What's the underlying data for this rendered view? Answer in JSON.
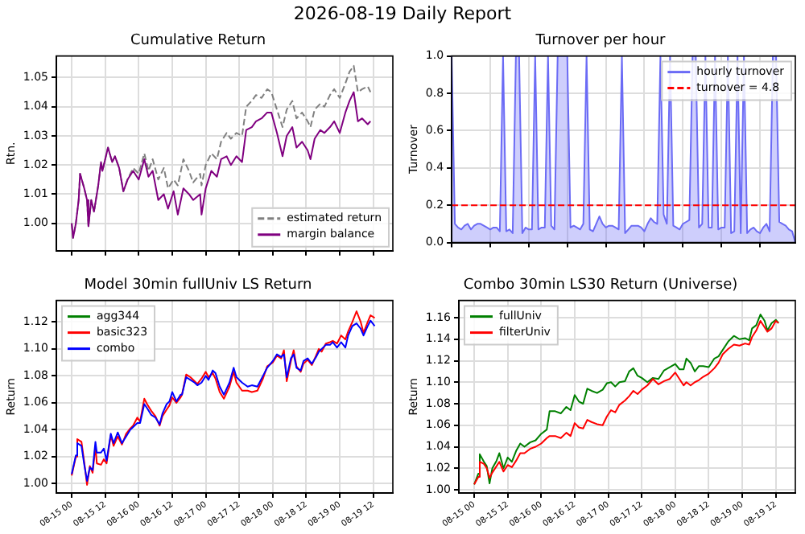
{
  "chart_data": [
    {
      "type": "line",
      "title": "Cumulative Return",
      "ylabel": "Rtn.",
      "annotations": [
        "2026-08-19 Daily Report"
      ],
      "x": [
        "2026-08-15T00:00",
        "2026-08-15T00:30",
        "2026-08-15T01:30",
        "2026-08-15T02:30",
        "2026-08-15T03:00",
        "2026-08-15T04:30",
        "2026-08-15T05:30",
        "2026-08-15T06:00",
        "2026-08-15T07:00",
        "2026-08-15T08:00",
        "2026-08-15T09:30",
        "2026-08-15T10:30",
        "2026-08-15T11:00",
        "2026-08-15T13:00",
        "2026-08-15T14:30",
        "2026-08-15T15:30",
        "2026-08-15T17:00",
        "2026-08-15T18:30",
        "2026-08-15T20:00",
        "2026-08-15T22:00",
        "2026-08-16T00:00",
        "2026-08-16T02:00",
        "2026-08-16T03:30",
        "2026-08-16T05:00",
        "2026-08-16T07:00",
        "2026-08-16T09:00",
        "2026-08-16T10:30",
        "2026-08-16T12:30",
        "2026-08-16T14:00",
        "2026-08-16T16:00",
        "2026-08-16T18:00",
        "2026-08-16T19:30",
        "2026-08-16T22:00",
        "2026-08-16T22:30",
        "2026-08-17T00:00",
        "2026-08-17T02:00",
        "2026-08-17T04:00",
        "2026-08-17T05:30",
        "2026-08-17T07:30",
        "2026-08-17T09:00",
        "2026-08-17T11:00",
        "2026-08-17T13:00",
        "2026-08-17T14:30",
        "2026-08-17T16:30",
        "2026-08-17T18:00",
        "2026-08-17T20:00",
        "2026-08-17T22:00",
        "2026-08-17T23:30",
        "2026-08-18T01:30",
        "2026-08-18T03:30",
        "2026-08-18T05:00",
        "2026-08-18T07:00",
        "2026-08-18T08:30",
        "2026-08-18T10:30",
        "2026-08-18T12:30",
        "2026-08-18T13:30",
        "2026-08-18T15:00",
        "2026-08-18T17:00",
        "2026-08-18T18:30",
        "2026-08-18T20:30",
        "2026-08-18T22:00",
        "2026-08-19T00:00",
        "2026-08-19T02:00",
        "2026-08-19T03:30",
        "2026-08-19T05:00",
        "2026-08-19T06:30",
        "2026-08-19T08:00",
        "2026-08-19T10:00",
        "2026-08-19T11:00"
      ],
      "series": [
        {
          "name": "estimated return",
          "color": "#808080",
          "line_style": "dashed",
          "values": [
            1.0,
            0.995,
            1.0,
            1.008,
            1.017,
            1.012,
            1.008,
            0.999,
            1.008,
            1.004,
            1.013,
            1.021,
            1.018,
            1.026,
            1.021,
            1.023,
            1.019,
            1.011,
            1.015,
            1.019,
            1.017,
            1.024,
            1.018,
            1.022,
            1.015,
            1.019,
            1.012,
            1.015,
            1.013,
            1.022,
            1.018,
            1.014,
            1.017,
            1.013,
            1.02,
            1.024,
            1.022,
            1.028,
            1.031,
            1.029,
            1.031,
            1.03,
            1.04,
            1.042,
            1.044,
            1.043,
            1.046,
            1.045,
            1.039,
            1.033,
            1.039,
            1.042,
            1.036,
            1.038,
            1.035,
            1.033,
            1.039,
            1.041,
            1.04,
            1.044,
            1.046,
            1.043,
            1.048,
            1.052,
            1.054,
            1.045,
            1.046,
            1.047,
            1.045
          ]
        },
        {
          "name": "margin balance",
          "color": "#800080",
          "values": [
            1.0,
            0.995,
            1.0,
            1.008,
            1.017,
            1.012,
            1.008,
            0.999,
            1.008,
            1.004,
            1.013,
            1.021,
            1.018,
            1.026,
            1.021,
            1.023,
            1.019,
            1.011,
            1.015,
            1.018,
            1.015,
            1.022,
            1.016,
            1.018,
            1.008,
            1.01,
            1.005,
            1.011,
            1.003,
            1.012,
            1.01,
            1.008,
            1.01,
            1.003,
            1.012,
            1.018,
            1.016,
            1.022,
            1.023,
            1.02,
            1.023,
            1.021,
            1.032,
            1.033,
            1.035,
            1.036,
            1.038,
            1.038,
            1.031,
            1.023,
            1.03,
            1.033,
            1.026,
            1.028,
            1.025,
            1.022,
            1.029,
            1.032,
            1.031,
            1.033,
            1.035,
            1.031,
            1.038,
            1.042,
            1.045,
            1.035,
            1.036,
            1.034,
            1.035
          ]
        }
      ],
      "xlim": [
        "2026-08-14T18:30",
        "2026-08-19T19:00"
      ],
      "xticks": [
        {
          "value": "2026-08-15T00:00",
          "label": null
        },
        {
          "value": "2026-08-15T12:00",
          "label": null
        },
        {
          "value": "2026-08-16T00:00",
          "label": null
        },
        {
          "value": "2026-08-16T12:00",
          "label": null
        },
        {
          "value": "2026-08-17T00:00",
          "label": null
        },
        {
          "value": "2026-08-17T12:00",
          "label": null
        },
        {
          "value": "2026-08-18T00:00",
          "label": null
        },
        {
          "value": "2026-08-18T12:00",
          "label": null
        },
        {
          "value": "2026-08-19T00:00",
          "label": null
        },
        {
          "value": "2026-08-19T12:00",
          "label": null
        }
      ],
      "ylim": [
        0.9906,
        1.0574
      ],
      "yticks": [
        {
          "value": 1,
          "label": "1.00"
        },
        {
          "value": 1.01,
          "label": "1.01"
        },
        {
          "value": 1.02,
          "label": "1.02"
        },
        {
          "value": 1.03,
          "label": "1.03"
        },
        {
          "value": 1.04,
          "label": "1.04"
        },
        {
          "value": 1.05,
          "label": "1.05"
        }
      ],
      "tick_labels": "y",
      "grid": true,
      "legend": "bottom right"
    },
    {
      "type": "area",
      "title": "Turnover per hour",
      "ylabel": "Turnover",
      "categories": [
        null,
        null,
        null,
        null,
        null,
        null,
        null,
        null,
        null,
        null,
        null,
        null,
        null,
        null,
        null,
        null,
        null,
        null,
        null,
        null,
        null,
        null,
        null,
        null,
        null,
        null,
        null,
        null,
        null,
        null,
        null,
        null,
        null,
        null,
        null,
        null,
        null,
        null,
        null,
        null,
        null,
        null,
        null,
        null,
        null,
        null,
        null,
        null,
        null,
        null,
        null,
        null,
        null,
        null,
        null,
        null,
        null,
        null,
        null,
        null,
        null,
        null,
        null,
        null,
        null,
        null,
        null,
        null,
        null,
        null,
        null,
        null,
        null,
        null,
        null,
        null,
        null,
        null,
        null,
        null,
        null,
        null,
        null,
        null,
        null,
        null,
        null,
        null,
        null,
        null,
        null,
        null,
        null,
        null,
        null,
        null,
        null,
        null,
        null,
        null,
        null,
        null,
        null,
        null,
        null,
        null,
        null,
        null
      ],
      "series": [
        {
          "name": "hourly turnover",
          "color": "#6b6bf5",
          "values": [
            1,
            0.1,
            0.08,
            0.07,
            0.09,
            0.1,
            0.07,
            0.09,
            0.1,
            0.1,
            0.09,
            0.08,
            0.07,
            0.08,
            0.08,
            0.06,
            1,
            0.06,
            0.07,
            0.05,
            1,
            1,
            0.05,
            0.08,
            0.07,
            0.07,
            1,
            0.07,
            0.08,
            0.08,
            1,
            0.09,
            0.07,
            1,
            1,
            1,
            1,
            0.08,
            0.09,
            0.08,
            0.07,
            0.1,
            1,
            0.07,
            0.06,
            0.1,
            0.14,
            0.1,
            0.08,
            0.09,
            0.09,
            0.08,
            0.07,
            1,
            0.05,
            0.07,
            0.09,
            0.09,
            0.09,
            0.08,
            0.06,
            0.1,
            0.13,
            0.11,
            0.1,
            1,
            0.15,
            0.1,
            1,
            0.09,
            0.08,
            0.07,
            0.1,
            0.11,
            0.12,
            1,
            1,
            0.08,
            0.1,
            1,
            0.08,
            0.08,
            1,
            0.07,
            0.08,
            0.08,
            1,
            0.05,
            0.06,
            1,
            0.05,
            1,
            0.05,
            0.07,
            0.08,
            0.06,
            0.05,
            0.08,
            0.1,
            0.06,
            1,
            1,
            0.11,
            0.1,
            0.09,
            0.07,
            0.06,
            0
          ]
        },
        {
          "type": "line",
          "name": "turnover = 4.8",
          "color": "#ff0000",
          "line_style": "dashed",
          "values": [
            0.2,
            0.2,
            0.2,
            0.2,
            0.2,
            0.2,
            0.2,
            0.2,
            0.2,
            0.2,
            0.2,
            0.2,
            0.2,
            0.2,
            0.2,
            0.2,
            0.2,
            0.2,
            0.2,
            0.2,
            0.2,
            0.2,
            0.2,
            0.2,
            0.2,
            0.2,
            0.2,
            0.2,
            0.2,
            0.2,
            0.2,
            0.2,
            0.2,
            0.2,
            0.2,
            0.2,
            0.2,
            0.2,
            0.2,
            0.2,
            0.2,
            0.2,
            0.2,
            0.2,
            0.2,
            0.2,
            0.2,
            0.2,
            0.2,
            0.2,
            0.2,
            0.2,
            0.2,
            0.2,
            0.2,
            0.2,
            0.2,
            0.2,
            0.2,
            0.2,
            0.2,
            0.2,
            0.2,
            0.2,
            0.2,
            0.2,
            0.2,
            0.2,
            0.2,
            0.2,
            0.2,
            0.2,
            0.2,
            0.2,
            0.2,
            0.2,
            0.2,
            0.2,
            0.2,
            0.2,
            0.2,
            0.2,
            0.2,
            0.2,
            0.2,
            0.2,
            0.2,
            0.2,
            0.2,
            0.2,
            0.2,
            0.2,
            0.2,
            0.2,
            0.2,
            0.2,
            0.2,
            0.2,
            0.2,
            0.2,
            0.2,
            0.2,
            0.2,
            0.2,
            0.2,
            0.2,
            0.2,
            0.2
          ]
        }
      ],
      "ylim": [
        0,
        1
      ],
      "yticks": [
        {
          "value": 0,
          "label": "0.0"
        },
        {
          "value": 0.2,
          "label": "0.2"
        },
        {
          "value": 0.4,
          "label": "0.4"
        },
        {
          "value": 0.6,
          "label": "0.6"
        },
        {
          "value": 0.8,
          "label": "0.8"
        },
        {
          "value": 1,
          "label": "1.0"
        }
      ],
      "tick_labels": "y",
      "grid": true,
      "legend": "top right"
    },
    {
      "type": "line",
      "title": "Model 30min fullUniv LS Return",
      "ylabel": "Return",
      "x": [
        "2026-08-15T00:00",
        "2026-08-15T01:30",
        "2026-08-15T02:00",
        "2026-08-15T03:30",
        "2026-08-15T04:30",
        "2026-08-15T05:30",
        "2026-08-15T06:30",
        "2026-08-15T07:30",
        "2026-08-15T08:30",
        "2026-08-15T09:00",
        "2026-08-15T10:30",
        "2026-08-15T11:30",
        "2026-08-15T12:30",
        "2026-08-15T14:00",
        "2026-08-15T15:00",
        "2026-08-15T16:30",
        "2026-08-15T18:00",
        "2026-08-15T19:30",
        "2026-08-15T21:00",
        "2026-08-15T22:00",
        "2026-08-15T23:30",
        "2026-08-16T00:30",
        "2026-08-16T02:00",
        "2026-08-16T03:00",
        "2026-08-16T04:30",
        "2026-08-16T06:00",
        "2026-08-16T07:30",
        "2026-08-16T08:30",
        "2026-08-16T10:00",
        "2026-08-16T11:00",
        "2026-08-16T12:00",
        "2026-08-16T13:30",
        "2026-08-16T15:00",
        "2026-08-16T15:30",
        "2026-08-16T17:00",
        "2026-08-16T18:30",
        "2026-08-16T20:00",
        "2026-08-16T21:00",
        "2026-08-16T22:30",
        "2026-08-17T00:00",
        "2026-08-17T01:00",
        "2026-08-17T02:30",
        "2026-08-17T03:30",
        "2026-08-17T05:00",
        "2026-08-17T06:30",
        "2026-08-17T08:30",
        "2026-08-17T10:00",
        "2026-08-17T11:00",
        "2026-08-17T13:00",
        "2026-08-17T15:00",
        "2026-08-17T16:30",
        "2026-08-17T18:30",
        "2026-08-17T20:30",
        "2026-08-17T22:00",
        "2026-08-18T00:00",
        "2026-08-18T01:30",
        "2026-08-18T03:00",
        "2026-08-18T04:00",
        "2026-08-18T05:00",
        "2026-08-18T06:30",
        "2026-08-18T07:30",
        "2026-08-18T08:30",
        "2026-08-18T10:00",
        "2026-08-18T11:00",
        "2026-08-18T12:30",
        "2026-08-18T14:00",
        "2026-08-18T15:30",
        "2026-08-18T16:30",
        "2026-08-18T17:30",
        "2026-08-18T19:00",
        "2026-08-18T20:30",
        "2026-08-18T21:30",
        "2026-08-18T23:00",
        "2026-08-19T00:30",
        "2026-08-19T02:00",
        "2026-08-19T03:00",
        "2026-08-19T04:30",
        "2026-08-19T06:00",
        "2026-08-19T07:30",
        "2026-08-19T08:30",
        "2026-08-19T10:00",
        "2026-08-19T11:00",
        "2026-08-19T12:30"
      ],
      "series": [
        {
          "name": "agg344",
          "color": "#008000",
          "values": [
            null,
            null,
            null,
            null,
            null,
            null,
            null,
            null,
            null,
            null,
            null,
            null,
            null,
            null,
            null,
            null,
            null,
            null,
            null,
            null,
            null,
            null,
            null,
            null,
            null,
            null,
            null,
            null,
            null,
            null,
            null,
            null,
            null,
            null,
            null,
            null,
            null,
            null,
            null,
            null,
            null,
            null,
            null,
            null,
            null,
            null,
            null,
            null,
            null,
            null,
            null,
            null,
            null,
            null,
            null,
            null,
            null,
            null,
            null,
            null,
            null,
            null,
            null,
            null,
            null,
            null,
            null,
            null,
            null,
            null,
            null,
            null,
            null,
            null,
            null,
            null,
            null,
            null,
            null,
            null,
            null,
            null,
            null
          ]
        },
        {
          "name": "basic323",
          "color": "#ff0000",
          "values": [
            1.006,
            1.02,
            1.033,
            1.031,
            1.016,
            0.999,
            1.013,
            1.008,
            1.028,
            1.015,
            1.014,
            1.018,
            1.015,
            1.036,
            1.028,
            1.035,
            1.029,
            1.037,
            1.041,
            1.043,
            1.049,
            1.046,
            1.063,
            1.059,
            1.054,
            1.05,
            1.043,
            1.05,
            1.055,
            1.058,
            1.064,
            1.06,
            1.064,
            1.066,
            1.081,
            1.079,
            1.076,
            1.074,
            1.078,
            1.083,
            1.079,
            1.082,
            1.078,
            1.068,
            1.063,
            1.072,
            1.083,
            1.075,
            1.069,
            1.069,
            1.068,
            1.069,
            1.078,
            1.087,
            1.09,
            1.095,
            1.093,
            1.099,
            1.076,
            1.091,
            1.099,
            1.087,
            1.083,
            1.089,
            1.092,
            1.088,
            1.095,
            1.1,
            1.098,
            1.104,
            1.105,
            1.106,
            1.104,
            1.11,
            1.107,
            1.113,
            1.12,
            1.128,
            1.12,
            1.112,
            1.12,
            1.125,
            1.123
          ]
        },
        {
          "name": "combo",
          "color": "#0000ff",
          "values": [
            1.007,
            1.021,
            1.03,
            1.028,
            1.014,
            1.002,
            1.012,
            1.01,
            1.031,
            1.023,
            1.023,
            1.026,
            1.017,
            1.037,
            1.03,
            1.038,
            1.03,
            1.035,
            1.04,
            1.042,
            1.045,
            1.045,
            1.059,
            1.056,
            1.051,
            1.049,
            1.044,
            1.052,
            1.059,
            1.061,
            1.068,
            1.061,
            1.066,
            1.066,
            1.079,
            1.077,
            1.075,
            1.073,
            1.075,
            1.08,
            1.077,
            1.084,
            1.082,
            1.072,
            1.066,
            1.075,
            1.086,
            1.079,
            1.075,
            1.072,
            1.073,
            1.072,
            1.08,
            1.086,
            1.091,
            1.096,
            1.094,
            1.096,
            1.079,
            1.093,
            1.096,
            1.086,
            1.084,
            1.091,
            1.093,
            1.089,
            1.094,
            1.098,
            1.1,
            1.103,
            1.103,
            1.105,
            1.101,
            1.105,
            1.101,
            1.11,
            1.117,
            1.119,
            1.115,
            1.11,
            1.117,
            1.121,
            1.117
          ]
        }
      ],
      "xlim": [
        "2026-08-14T18:30",
        "2026-08-19T19:00"
      ],
      "xticks": [
        {
          "value": "2026-08-15T00:00",
          "label": "08-15 00"
        },
        {
          "value": "2026-08-15T12:00",
          "label": "08-15 12"
        },
        {
          "value": "2026-08-16T00:00",
          "label": "08-16 00"
        },
        {
          "value": "2026-08-16T12:00",
          "label": "08-16 12"
        },
        {
          "value": "2026-08-17T00:00",
          "label": "08-17 00"
        },
        {
          "value": "2026-08-17T12:00",
          "label": "08-17 12"
        },
        {
          "value": "2026-08-18T00:00",
          "label": "08-18 00"
        },
        {
          "value": "2026-08-18T12:00",
          "label": "08-18 12"
        },
        {
          "value": "2026-08-19T00:00",
          "label": "08-19 00"
        },
        {
          "value": "2026-08-19T12:00",
          "label": "08-19 12"
        }
      ],
      "ylim": [
        0.993,
        1.136
      ],
      "yticks": [
        {
          "value": 1,
          "label": "1.00"
        },
        {
          "value": 1.02,
          "label": "1.02"
        },
        {
          "value": 1.04,
          "label": "1.04"
        },
        {
          "value": 1.06,
          "label": "1.06"
        },
        {
          "value": 1.08,
          "label": "1.08"
        },
        {
          "value": 1.1,
          "label": "1.10"
        },
        {
          "value": 1.12,
          "label": "1.12"
        }
      ],
      "grid": true,
      "legend": "top left"
    },
    {
      "type": "line",
      "title": "Combo 30min LS30 Return (Universe)",
      "ylabel": "Return",
      "x": [
        "2026-08-15T00:00",
        "2026-08-15T01:30",
        "2026-08-15T02:00",
        "2026-08-15T03:30",
        "2026-08-15T04:30",
        "2026-08-15T05:30",
        "2026-08-15T06:30",
        "2026-08-15T08:00",
        "2026-08-15T09:00",
        "2026-08-15T10:30",
        "2026-08-15T12:00",
        "2026-08-15T13:30",
        "2026-08-15T15:00",
        "2026-08-15T16:30",
        "2026-08-15T18:00",
        "2026-08-15T20:00",
        "2026-08-15T22:00",
        "2026-08-16T00:00",
        "2026-08-16T02:00",
        "2026-08-16T03:00",
        "2026-08-16T05:00",
        "2026-08-16T07:00",
        "2026-08-16T09:00",
        "2026-08-16T10:30",
        "2026-08-16T12:00",
        "2026-08-16T13:30",
        "2026-08-16T15:00",
        "2026-08-16T16:30",
        "2026-08-16T18:00",
        "2026-08-16T20:00",
        "2026-08-16T22:00",
        "2026-08-16T23:30",
        "2026-08-17T01:00",
        "2026-08-17T02:30",
        "2026-08-17T04:00",
        "2026-08-17T06:00",
        "2026-08-17T07:30",
        "2026-08-17T09:00",
        "2026-08-17T10:30",
        "2026-08-17T12:00",
        "2026-08-17T14:00",
        "2026-08-17T16:00",
        "2026-08-17T18:00",
        "2026-08-17T20:00",
        "2026-08-17T22:00",
        "2026-08-18T00:00",
        "2026-08-18T01:30",
        "2026-08-18T03:00",
        "2026-08-18T04:00",
        "2026-08-18T05:30",
        "2026-08-18T07:00",
        "2026-08-18T08:30",
        "2026-08-18T10:00",
        "2026-08-18T12:00",
        "2026-08-18T14:00",
        "2026-08-18T15:30",
        "2026-08-18T17:00",
        "2026-08-18T19:00",
        "2026-08-18T21:00",
        "2026-08-18T23:00",
        "2026-08-19T01:00",
        "2026-08-19T02:30",
        "2026-08-19T03:30",
        "2026-08-19T05:00",
        "2026-08-19T06:30",
        "2026-08-19T08:00",
        "2026-08-19T09:00",
        "2026-08-19T10:30",
        "2026-08-19T12:00",
        "2026-08-19T13:00"
      ],
      "series": [
        {
          "name": "fullUniv",
          "color": "#008000",
          "values": [
            1.005,
            1.015,
            1.033,
            1.026,
            1.022,
            1.006,
            1.02,
            1.027,
            1.034,
            1.02,
            1.03,
            1.026,
            1.036,
            1.043,
            1.04,
            1.044,
            1.046,
            1.052,
            1.056,
            1.073,
            1.073,
            1.071,
            1.077,
            1.074,
            1.088,
            1.082,
            1.08,
            1.094,
            1.092,
            1.09,
            1.093,
            1.099,
            1.1,
            1.096,
            1.1,
            1.101,
            1.11,
            1.113,
            1.106,
            1.104,
            1.1,
            1.104,
            1.103,
            1.111,
            1.114,
            1.117,
            1.112,
            1.112,
            1.122,
            1.118,
            1.11,
            1.115,
            1.115,
            1.114,
            1.122,
            1.124,
            1.13,
            1.138,
            1.143,
            1.14,
            1.141,
            1.139,
            1.15,
            1.153,
            1.163,
            1.157,
            1.148,
            1.155,
            1.158,
            1.155
          ]
        },
        {
          "name": "filterUniv",
          "color": "#ff0000",
          "values": [
            1.005,
            1.012,
            1.026,
            1.024,
            1.02,
            1.011,
            1.016,
            1.022,
            1.026,
            1.017,
            1.023,
            1.021,
            1.027,
            1.034,
            1.034,
            1.038,
            1.04,
            1.043,
            1.048,
            1.05,
            1.05,
            1.048,
            1.053,
            1.05,
            1.062,
            1.058,
            1.057,
            1.065,
            1.063,
            1.061,
            1.06,
            1.068,
            1.074,
            1.072,
            1.079,
            1.083,
            1.087,
            1.092,
            1.089,
            1.093,
            1.097,
            1.103,
            1.098,
            1.101,
            1.103,
            1.109,
            1.103,
            1.097,
            1.1,
            1.097,
            1.1,
            1.102,
            1.105,
            1.108,
            1.113,
            1.118,
            1.126,
            1.131,
            1.135,
            1.134,
            1.136,
            1.135,
            1.142,
            1.148,
            1.157,
            1.151,
            1.147,
            1.15,
            1.157,
            1.155
          ]
        }
      ],
      "xlim": [
        "2026-08-14T18:30",
        "2026-08-19T19:00"
      ],
      "xticks": [
        {
          "value": "2026-08-15T00:00",
          "label": "08-15 00"
        },
        {
          "value": "2026-08-15T12:00",
          "label": "08-15 12"
        },
        {
          "value": "2026-08-16T00:00",
          "label": "08-16 00"
        },
        {
          "value": "2026-08-16T12:00",
          "label": "08-16 12"
        },
        {
          "value": "2026-08-17T00:00",
          "label": "08-17 00"
        },
        {
          "value": "2026-08-17T12:00",
          "label": "08-17 12"
        },
        {
          "value": "2026-08-18T00:00",
          "label": "08-18 00"
        },
        {
          "value": "2026-08-18T12:00",
          "label": "08-18 12"
        },
        {
          "value": "2026-08-19T00:00",
          "label": "08-19 00"
        },
        {
          "value": "2026-08-19T12:00",
          "label": "08-19 12"
        }
      ],
      "ylim": [
        0.997,
        1.176
      ],
      "yticks": [
        {
          "value": 1,
          "label": "1.00"
        },
        {
          "value": 1.02,
          "label": "1.02"
        },
        {
          "value": 1.04,
          "label": "1.04"
        },
        {
          "value": 1.06,
          "label": "1.06"
        },
        {
          "value": 1.08,
          "label": "1.08"
        },
        {
          "value": 1.1,
          "label": "1.10"
        },
        {
          "value": 1.12,
          "label": "1.12"
        },
        {
          "value": 1.14,
          "label": "1.14"
        },
        {
          "value": 1.16,
          "label": "1.16"
        }
      ],
      "grid": true,
      "legend": "top left"
    }
  ]
}
